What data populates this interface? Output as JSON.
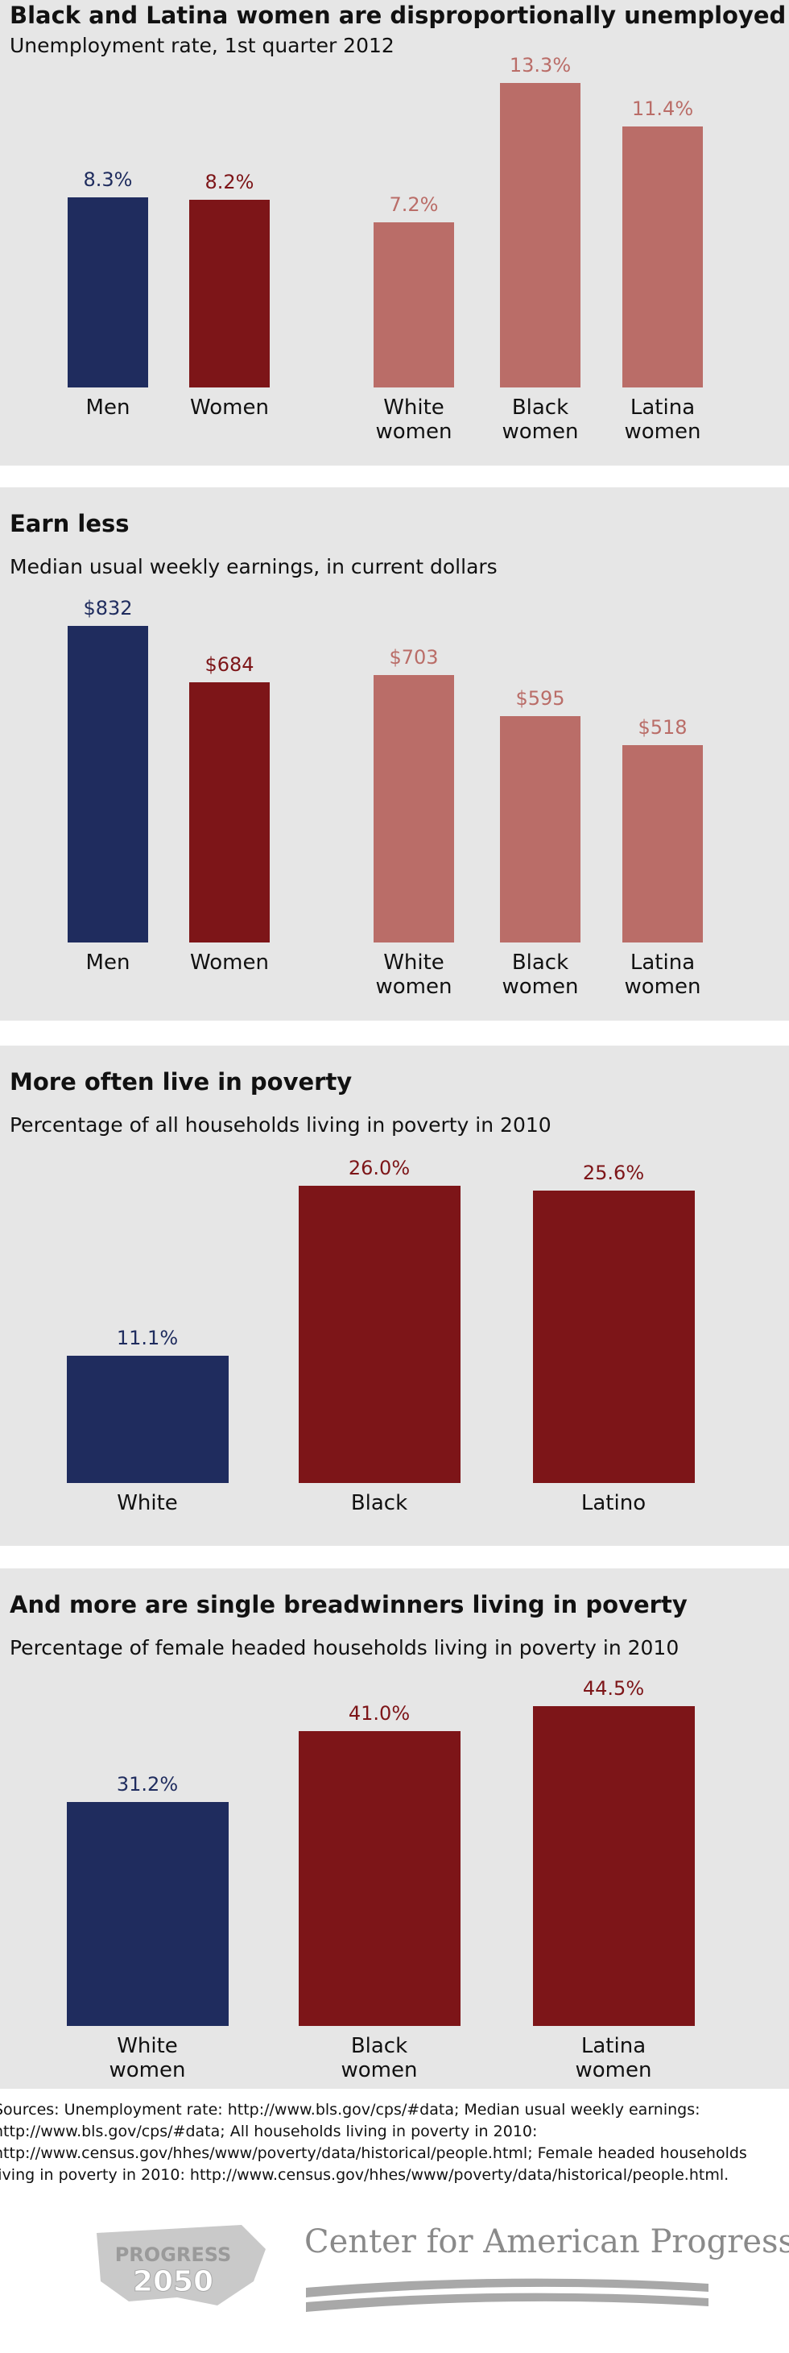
{
  "chart_data": [
    {
      "type": "bar",
      "title": "Black and Latina women are disproportionally unemployed",
      "subtitle": "Unemployment rate, 1st quarter 2012",
      "categories": [
        "Men",
        "Women",
        "White women",
        "Black women",
        "Latina women"
      ],
      "values": [
        8.3,
        8.2,
        7.2,
        13.3,
        11.4
      ],
      "value_labels": [
        "8.3%",
        "8.2%",
        "7.2%",
        "13.3%",
        "11.4%"
      ],
      "colors": [
        "#1f2c5e",
        "#7d1518",
        "#ba6d68",
        "#ba6d68",
        "#ba6d68"
      ]
    },
    {
      "type": "bar",
      "title": "Earn less",
      "subtitle": "Median usual weekly earnings, in current dollars",
      "categories": [
        "Men",
        "Women",
        "White women",
        "Black women",
        "Latina women"
      ],
      "values": [
        832,
        684,
        703,
        595,
        518
      ],
      "value_labels": [
        "$832",
        "$684",
        "$703",
        "$595",
        "$518"
      ],
      "colors": [
        "#1f2c5e",
        "#7d1518",
        "#ba6d68",
        "#ba6d68",
        "#ba6d68"
      ]
    },
    {
      "type": "bar",
      "title": "More often live in poverty",
      "subtitle": "Percentage of all households living in poverty in 2010",
      "categories": [
        "White",
        "Black",
        "Latino"
      ],
      "values": [
        11.1,
        26.0,
        25.6
      ],
      "value_labels": [
        "11.1%",
        "26.0%",
        "25.6%"
      ],
      "colors": [
        "#1f2c5e",
        "#7d1518",
        "#7d1518"
      ]
    },
    {
      "type": "bar",
      "title": "And more are single breadwinners living in poverty",
      "subtitle": "Percentage of female headed households living in poverty in 2010",
      "categories": [
        "White women",
        "Black women",
        "Latina women"
      ],
      "values": [
        31.2,
        41.0,
        44.5
      ],
      "value_labels": [
        "31.2%",
        "41.0%",
        "44.5%"
      ],
      "colors": [
        "#1f2c5e",
        "#7d1518",
        "#7d1518"
      ]
    }
  ],
  "sources": "Sources: Unemployment rate: http://www.bls.gov/cps/#data; Median usual weekly earnings: http://www.bls.gov/cps/#data; All households living in poverty in 2010: http://www.census.gov/hhes/www/poverty/data/historical/people.html; Female headed households living in poverty in 2010: http://www.census.gov/hhes/www/poverty/data/historical/people.html.",
  "footer": {
    "logo_top": "PROGRESS",
    "logo_bottom": "2050",
    "organization": "Center for American Progress"
  }
}
